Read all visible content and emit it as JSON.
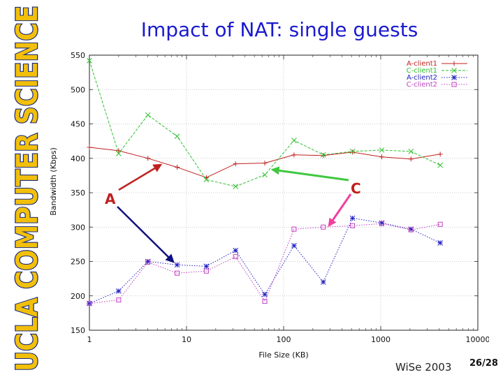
{
  "sidebar": {
    "logo_text": "UCLA COMPUTER SCIENCE"
  },
  "slide": {
    "title": "Impact of NAT: single guests",
    "footer": "WiSe 2003",
    "page": "26/28"
  },
  "annotations": {
    "label_a": "A",
    "label_c": "C"
  },
  "colors": {
    "title": "#1a1ad0",
    "logo_fill": "#f2c00b",
    "logo_stroke": "#1a2a7a",
    "arrow_red": "#c02020",
    "arrow_navy": "#101080",
    "arrow_green": "#40c840",
    "arrow_pink": "#f040a0"
  },
  "chart_data": {
    "type": "line",
    "title": "",
    "xlabel": "File Size (KB)",
    "ylabel": "Bandwidth (Kbps)",
    "xscale": "log",
    "xlim": [
      1,
      10000
    ],
    "ylim": [
      150,
      550
    ],
    "xticks": [
      1,
      10,
      100,
      1000,
      10000
    ],
    "xtick_labels": [
      "1",
      "10",
      "100",
      "1000",
      "10000"
    ],
    "yticks": [
      150,
      200,
      250,
      300,
      350,
      400,
      450,
      500,
      550
    ],
    "ytick_labels": [
      "150",
      "200",
      "250",
      "300",
      "350",
      "400",
      "450",
      "500",
      "550"
    ],
    "grid": true,
    "legend_position": "top-right",
    "x": [
      1,
      2,
      4,
      8,
      16,
      32,
      64,
      128,
      256,
      512,
      1024,
      2048,
      4096
    ],
    "series": [
      {
        "name": "A-client1",
        "color": "#c02020",
        "marker": "plus",
        "dash": "solid",
        "values": [
          416,
          411,
          400,
          387,
          372,
          392,
          393,
          405,
          404,
          409,
          402,
          399,
          406
        ]
      },
      {
        "name": "C-client1",
        "color": "#30c030",
        "marker": "x",
        "dash": "dashed",
        "values": [
          542,
          407,
          463,
          432,
          369,
          359,
          376,
          426,
          405,
          410,
          412,
          410,
          390
        ]
      },
      {
        "name": "A-client2",
        "color": "#2020c0",
        "marker": "star",
        "dash": "dotted",
        "values": [
          189,
          207,
          250,
          245,
          243,
          266,
          202,
          273,
          220,
          313,
          306,
          297,
          277
        ]
      },
      {
        "name": "C-client2",
        "color": "#c040c0",
        "marker": "square",
        "dash": "dotted",
        "values": [
          189,
          194,
          249,
          233,
          236,
          257,
          192,
          297,
          300,
          302,
          305,
          296,
          304
        ]
      }
    ]
  }
}
